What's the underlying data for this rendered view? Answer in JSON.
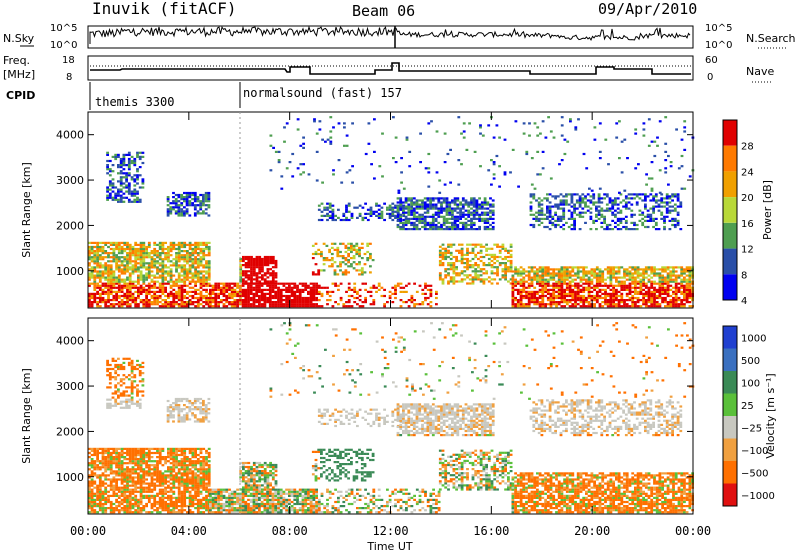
{
  "header": {
    "station": "Inuvik (fitACF)",
    "beam": "Beam 06",
    "date": "09/Apr/2010"
  },
  "panels": {
    "nsky": {
      "left_label_1": "N.Sky",
      "left_ticks": [
        "10^5",
        "10^0"
      ],
      "right_ticks": [
        "10^5",
        "10^0"
      ],
      "right_label": "N.Search"
    },
    "freq": {
      "left_label_1": "Freq.",
      "left_label_2": "[MHz]",
      "left_ticks": [
        "18",
        "8"
      ],
      "right_ticks": [
        "60",
        "0"
      ],
      "right_label": "Nave"
    },
    "cpid": {
      "label": "CPID",
      "entries": [
        "themis 3300",
        "normalsound (fast) 157"
      ]
    }
  },
  "chart_data": [
    {
      "type": "heatmap",
      "name": "power",
      "ylabel": "Slant Range [km]",
      "xlabel": "Time UT",
      "ylim": [
        180,
        4500
      ],
      "yticks": [
        1000,
        2000,
        3000,
        4000
      ],
      "xticks": [
        "00:00",
        "04:00",
        "08:00",
        "12:00",
        "16:00",
        "20:00",
        "00:00"
      ],
      "colorbar": {
        "label": "Power [dB]",
        "ticks": [
          "28",
          "24",
          "20",
          "16",
          "12",
          "8",
          "4"
        ],
        "colors": [
          "#e00000",
          "#ff7a00",
          "#f0a000",
          "#b8d838",
          "#4e9e50",
          "#2a4fa8",
          "#0000f0"
        ]
      }
    },
    {
      "type": "heatmap",
      "name": "velocity",
      "ylabel": "Slant Range [km]",
      "xlabel": "Time UT",
      "ylim": [
        180,
        4500
      ],
      "yticks": [
        1000,
        2000,
        3000,
        4000
      ],
      "xticks": [
        "00:00",
        "04:00",
        "08:00",
        "12:00",
        "16:00",
        "20:00",
        "00:00"
      ],
      "colorbar": {
        "label": "Velocity [m s⁻¹]",
        "ticks": [
          "1000",
          "500",
          "100",
          "25",
          "−25",
          "−100",
          "−500",
          "−1000"
        ],
        "colors": [
          "#2040d0",
          "#3a70c0",
          "#3a8a56",
          "#5ac03a",
          "#c8c8c0",
          "#f0a040",
          "#ff7000",
          "#e01010"
        ]
      }
    }
  ],
  "x_axis_title": "Time UT",
  "x_ticks": [
    "00:00",
    "04:00",
    "08:00",
    "12:00",
    "16:00",
    "20:00",
    "00:00"
  ]
}
